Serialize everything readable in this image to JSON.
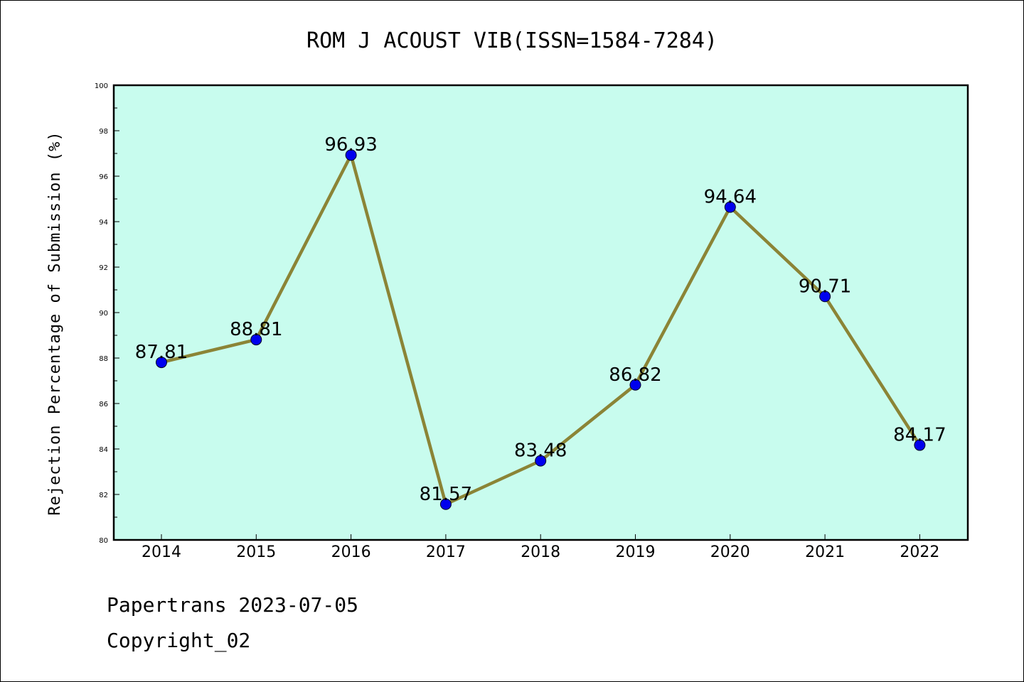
{
  "chart_data": {
    "type": "line",
    "title": "ROM J ACOUST VIB(ISSN=1584-7284)",
    "xlabel": "",
    "ylabel": "Rejection Percentage of Submission (%)",
    "categories": [
      "2014",
      "2015",
      "2016",
      "2017",
      "2018",
      "2019",
      "2020",
      "2021",
      "2022"
    ],
    "values": [
      87.81,
      88.81,
      96.93,
      81.57,
      83.48,
      86.82,
      94.64,
      90.71,
      84.17
    ],
    "data_labels": [
      "87.81",
      "88.81",
      "96.93",
      "81.57",
      "83.48",
      "86.82",
      "94.64",
      "90.71",
      "84.17"
    ],
    "ylim": [
      80,
      100
    ],
    "yticks": [
      "80",
      "82",
      "84",
      "86",
      "88",
      "90",
      "92",
      "94",
      "96",
      "98",
      "100"
    ],
    "grid": false,
    "colors": {
      "plot_background": "#c8fcee",
      "line": "#8b8436",
      "marker": "#0000ee",
      "axes": "#000000"
    }
  },
  "footer": {
    "line1": "Papertrans 2023-07-05",
    "line2": "Copyright_02"
  }
}
